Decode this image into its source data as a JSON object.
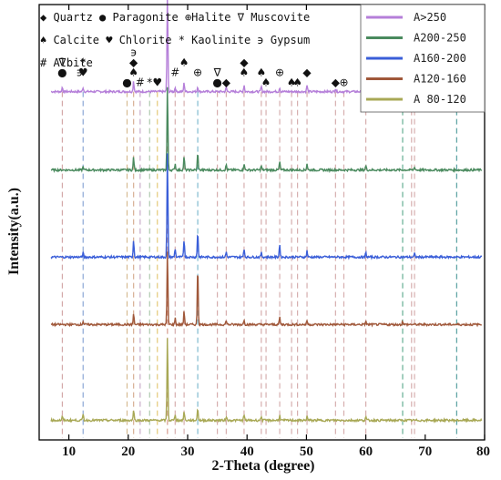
{
  "chart_data": {
    "type": "line",
    "xlabel": "2-Theta (degree)",
    "ylabel": "Intensity(a.u.)",
    "xlim": [
      5,
      80
    ],
    "x_ticks": [
      10,
      20,
      30,
      40,
      50,
      60,
      70,
      80
    ],
    "series": [
      {
        "name": "A>250",
        "color": "#b57fd9",
        "baseline": 0.8,
        "peaks": [
          [
            8.9,
            0.01
          ],
          [
            12.4,
            0.01
          ],
          [
            20.9,
            0.025
          ],
          [
            26.6,
            0.23
          ],
          [
            27.9,
            0.01
          ],
          [
            29.4,
            0.02
          ],
          [
            31.7,
            0.012
          ],
          [
            36.5,
            0.01
          ],
          [
            39.5,
            0.015
          ],
          [
            42.4,
            0.012
          ],
          [
            45.5,
            0.01
          ],
          [
            50.1,
            0.015
          ],
          [
            54.9,
            0.008
          ],
          [
            60.0,
            0.012
          ],
          [
            68.2,
            0.01
          ]
        ]
      },
      {
        "name": "A200-250",
        "color": "#4a8a5e",
        "baseline": 0.62,
        "peaks": [
          [
            12.4,
            0.008
          ],
          [
            20.9,
            0.03
          ],
          [
            26.6,
            0.2
          ],
          [
            27.9,
            0.015
          ],
          [
            29.4,
            0.03
          ],
          [
            31.7,
            0.04
          ],
          [
            36.5,
            0.012
          ],
          [
            39.5,
            0.015
          ],
          [
            42.4,
            0.01
          ],
          [
            45.5,
            0.02
          ],
          [
            50.1,
            0.015
          ],
          [
            60.0,
            0.01
          ],
          [
            68.2,
            0.008
          ]
        ]
      },
      {
        "name": "A160-200",
        "color": "#3a5ed8",
        "baseline": 0.42,
        "peaks": [
          [
            12.4,
            0.01
          ],
          [
            20.9,
            0.04
          ],
          [
            26.6,
            0.25
          ],
          [
            27.9,
            0.02
          ],
          [
            29.4,
            0.04
          ],
          [
            31.7,
            0.06
          ],
          [
            36.5,
            0.012
          ],
          [
            39.5,
            0.02
          ],
          [
            42.4,
            0.01
          ],
          [
            45.5,
            0.03
          ],
          [
            50.1,
            0.015
          ],
          [
            60.0,
            0.01
          ],
          [
            68.2,
            0.008
          ]
        ]
      },
      {
        "name": "A120-160",
        "color": "#a0583a",
        "baseline": 0.265,
        "peaks": [
          [
            12.4,
            0.008
          ],
          [
            20.9,
            0.025
          ],
          [
            26.6,
            0.175
          ],
          [
            27.9,
            0.015
          ],
          [
            29.4,
            0.03
          ],
          [
            31.7,
            0.14
          ],
          [
            36.5,
            0.01
          ],
          [
            39.5,
            0.012
          ],
          [
            45.5,
            0.018
          ],
          [
            50.1,
            0.01
          ],
          [
            60.0,
            0.008
          ],
          [
            66.2,
            0.008
          ]
        ]
      },
      {
        "name": "A 80-120",
        "color": "#a8a855",
        "baseline": 0.045,
        "peaks": [
          [
            8.9,
            0.008
          ],
          [
            12.4,
            0.015
          ],
          [
            20.9,
            0.025
          ],
          [
            26.6,
            0.2
          ],
          [
            27.9,
            0.015
          ],
          [
            29.4,
            0.02
          ],
          [
            31.7,
            0.03
          ],
          [
            36.5,
            0.01
          ],
          [
            39.5,
            0.012
          ],
          [
            42.4,
            0.01
          ],
          [
            45.5,
            0.012
          ],
          [
            50.1,
            0.01
          ],
          [
            60.0,
            0.008
          ]
        ]
      }
    ],
    "ref_lines": [
      {
        "x": 8.9,
        "color": "#cc9999"
      },
      {
        "x": 12.4,
        "color": "#7a9ad0"
      },
      {
        "x": 19.8,
        "color": "#d0b080"
      },
      {
        "x": 20.9,
        "color": "#d0a080"
      },
      {
        "x": 22.0,
        "color": "#c0a0c0"
      },
      {
        "x": 23.6,
        "color": "#a0c0a0"
      },
      {
        "x": 24.9,
        "color": "#e0c060"
      },
      {
        "x": 26.6,
        "color": "#d08a7a"
      },
      {
        "x": 27.9,
        "color": "#d0a0a0"
      },
      {
        "x": 29.4,
        "color": "#d0a0a0"
      },
      {
        "x": 31.7,
        "color": "#6ab0c8"
      },
      {
        "x": 35.0,
        "color": "#d0a0a0"
      },
      {
        "x": 36.5,
        "color": "#d0a0a0"
      },
      {
        "x": 39.5,
        "color": "#d0a0a0"
      },
      {
        "x": 42.4,
        "color": "#d0a0a0"
      },
      {
        "x": 43.2,
        "color": "#d0a0a0"
      },
      {
        "x": 45.5,
        "color": "#d0a0a0"
      },
      {
        "x": 47.5,
        "color": "#d0a0a0"
      },
      {
        "x": 48.5,
        "color": "#d0a0a0"
      },
      {
        "x": 50.1,
        "color": "#d0a0a0"
      },
      {
        "x": 54.9,
        "color": "#d0a0a0"
      },
      {
        "x": 56.3,
        "color": "#d0a0a0"
      },
      {
        "x": 60.0,
        "color": "#d0a0a0"
      },
      {
        "x": 66.2,
        "color": "#4aa080"
      },
      {
        "x": 67.7,
        "color": "#d0a0a0"
      },
      {
        "x": 68.2,
        "color": "#d0a0a0"
      },
      {
        "x": 75.3,
        "color": "#3a9090"
      }
    ],
    "phase_markers": [
      {
        "x": 8.9,
        "symbol": "∇",
        "level": 2
      },
      {
        "x": 8.9,
        "symbol": "●",
        "level": 1
      },
      {
        "x": 11.8,
        "symbol": "϶",
        "level": 1
      },
      {
        "x": 12.4,
        "symbol": "*",
        "level": 2
      },
      {
        "x": 12.4,
        "symbol": "♥",
        "level": 1
      },
      {
        "x": 19.8,
        "symbol": "●",
        "level": 0
      },
      {
        "x": 20.9,
        "symbol": "϶",
        "level": 3
      },
      {
        "x": 20.9,
        "symbol": "◆",
        "level": 2
      },
      {
        "x": 20.9,
        "symbol": "♠",
        "level": 1
      },
      {
        "x": 22.0,
        "symbol": "#",
        "level": 0
      },
      {
        "x": 23.6,
        "symbol": "*",
        "level": 0
      },
      {
        "x": 24.9,
        "symbol": "♥",
        "level": 0
      },
      {
        "x": 26.6,
        "symbol": "◆",
        "level": 9
      },
      {
        "x": 27.9,
        "symbol": "#",
        "level": 1
      },
      {
        "x": 29.4,
        "symbol": "♠",
        "level": 2
      },
      {
        "x": 31.7,
        "symbol": "⊕",
        "level": 1
      },
      {
        "x": 35.0,
        "symbol": "∇",
        "level": 1
      },
      {
        "x": 35.0,
        "symbol": "●",
        "level": 0
      },
      {
        "x": 36.5,
        "symbol": "◆",
        "level": 0
      },
      {
        "x": 39.5,
        "symbol": "◆",
        "level": 2
      },
      {
        "x": 39.5,
        "symbol": "♠",
        "level": 1
      },
      {
        "x": 42.4,
        "symbol": "♠",
        "level": 1
      },
      {
        "x": 43.2,
        "symbol": "♠",
        "level": 0
      },
      {
        "x": 45.5,
        "symbol": "⊕",
        "level": 1
      },
      {
        "x": 47.5,
        "symbol": "♠",
        "level": 0
      },
      {
        "x": 48.5,
        "symbol": "♠",
        "level": 0
      },
      {
        "x": 50.1,
        "symbol": "◆",
        "level": 1
      },
      {
        "x": 54.9,
        "symbol": "◆",
        "level": 0
      },
      {
        "x": 56.3,
        "symbol": "⊕",
        "level": 0
      },
      {
        "x": 60.0,
        "symbol": "◆",
        "level": 1
      },
      {
        "x": 66.2,
        "symbol": "⊕",
        "level": 0
      },
      {
        "x": 67.7,
        "symbol": "◆",
        "level": 0
      },
      {
        "x": 68.2,
        "symbol": "◆",
        "level": 0
      }
    ],
    "phase_key": [
      {
        "text": "◆ Quartz ● Paragonite ⊕Halite ∇ Muscovite"
      },
      {
        "text": "♠ Calcite ♥ Chlorite * Kaolinite ϶ Gypsum"
      },
      {
        "text": "# Albite"
      }
    ],
    "legend_position": "top-right"
  }
}
